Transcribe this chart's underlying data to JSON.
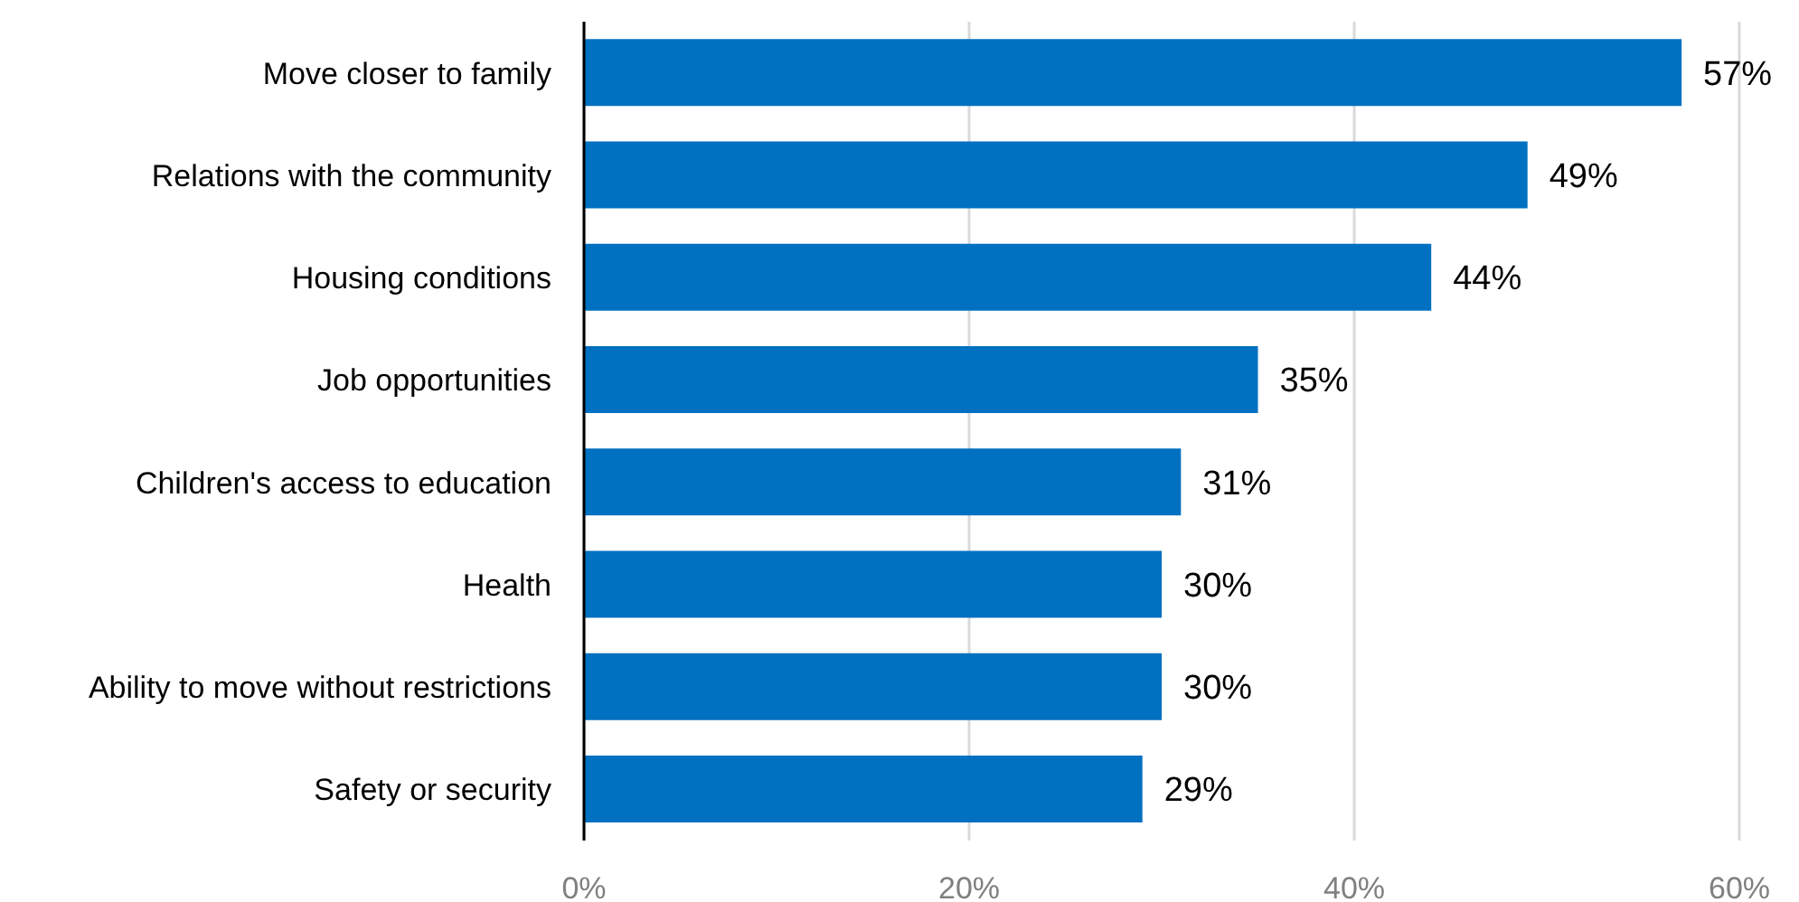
{
  "chart_data": {
    "type": "bar",
    "orientation": "horizontal",
    "categories": [
      "Move closer to family",
      "Relations with the community",
      "Housing conditions",
      "Job opportunities",
      "Children's access to education",
      "Health",
      "Ability to move without restrictions",
      "Safety or security"
    ],
    "values": [
      57,
      49,
      44,
      35,
      31,
      30,
      30,
      29
    ],
    "color": "#0070c0",
    "xlim": [
      0,
      60
    ],
    "xticks": [
      {
        "value": 0,
        "label": "0%"
      },
      {
        "value": 20,
        "label": "20%"
      },
      {
        "value": 40,
        "label": "40%"
      },
      {
        "value": 60,
        "label": "60%"
      }
    ],
    "value_labels": [
      "57%",
      "49%",
      "44%",
      "35%",
      "31%",
      "30%",
      "30%",
      "29%"
    ],
    "grid": "x"
  }
}
